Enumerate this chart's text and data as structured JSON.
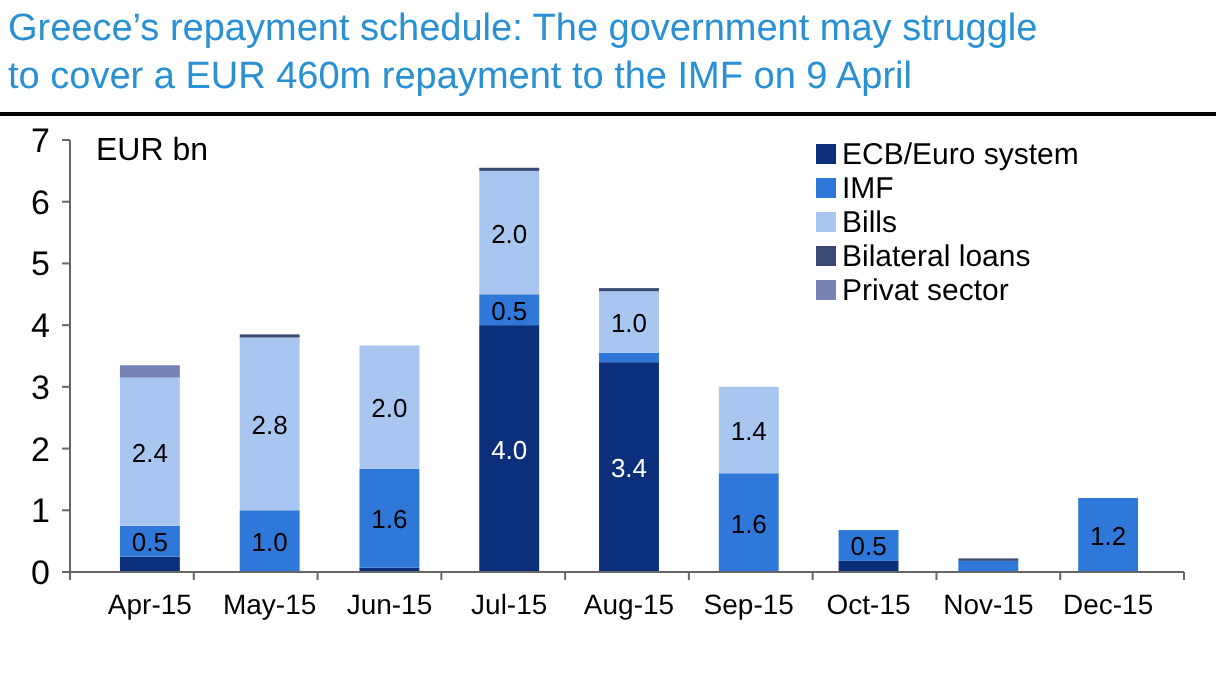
{
  "chart_data": {
    "type": "bar",
    "stacked": true,
    "title": "Greece’s repayment schedule: The government may struggle to cover a EUR 460m repayment to the IMF on 9 April",
    "ylabel": "EUR bn",
    "categories": [
      "Apr-15",
      "May-15",
      "Jun-15",
      "Jul-15",
      "Aug-15",
      "Sep-15",
      "Oct-15",
      "Nov-15",
      "Dec-15"
    ],
    "series": [
      {
        "name": "ECB/Euro system",
        "color": "#0b2f7a",
        "values": [
          0.25,
          0,
          0.07,
          4.0,
          3.4,
          0,
          0.18,
          0,
          0
        ],
        "value_labels": [
          null,
          null,
          null,
          "4.0",
          "3.4",
          null,
          null,
          null,
          null
        ]
      },
      {
        "name": "IMF",
        "color": "#2f77d9",
        "values": [
          0.5,
          1.0,
          1.6,
          0.5,
          0.15,
          1.6,
          0.5,
          0.18,
          1.2
        ],
        "value_labels": [
          "0.5",
          "1.0",
          "1.6",
          "0.5",
          null,
          "1.6",
          "0.5",
          null,
          "1.2"
        ]
      },
      {
        "name": "Bills",
        "color": "#a9c6f0",
        "values": [
          2.4,
          2.8,
          2.0,
          2.0,
          1.0,
          1.4,
          0,
          0,
          0
        ],
        "value_labels": [
          "2.4",
          "2.8",
          "2.0",
          "2.0",
          "1.0",
          "1.4",
          null,
          null,
          null
        ]
      },
      {
        "name": "Bilateral loans",
        "color": "#3b4a73",
        "values": [
          0,
          0.05,
          0,
          0.05,
          0.05,
          0,
          0,
          0.04,
          0
        ]
      },
      {
        "name": "Privat sector",
        "color": "#7783b3",
        "values": [
          0.2,
          0,
          0,
          0,
          0,
          0,
          0,
          0,
          0
        ]
      }
    ],
    "ylim": [
      0,
      7
    ],
    "yticks": [
      0,
      1,
      2,
      3,
      4,
      5,
      6,
      7
    ],
    "legend": "top right"
  }
}
